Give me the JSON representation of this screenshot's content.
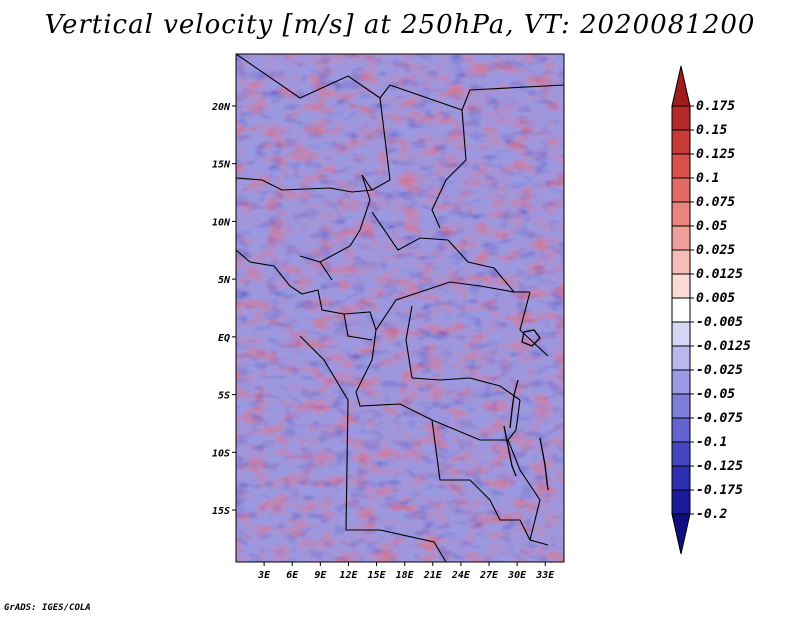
{
  "title": "Vertical velocity [m/s] at 250hPa, VT: 2020081200",
  "credit": "GrADS: IGES/COLA",
  "map": {
    "lat_range": [
      -19.5,
      24.5
    ],
    "lon_range": [
      0,
      35
    ],
    "y_ticks": [
      "20N",
      "15N",
      "10N",
      "5N",
      "EQ",
      "5S",
      "10S",
      "15S"
    ],
    "y_tick_values": [
      20,
      15,
      10,
      5,
      0,
      -5,
      -10,
      -15
    ],
    "x_ticks": [
      "3E",
      "6E",
      "9E",
      "12E",
      "15E",
      "18E",
      "21E",
      "24E",
      "27E",
      "30E",
      "33E"
    ],
    "x_tick_values": [
      3,
      6,
      9,
      12,
      15,
      18,
      21,
      24,
      27,
      30,
      33
    ]
  },
  "colorbar": {
    "labels": [
      "0.175",
      "0.15",
      "0.125",
      "0.1",
      "0.075",
      "0.05",
      "0.025",
      "0.0125",
      "0.005",
      "-0.005",
      "-0.0125",
      "-0.025",
      "-0.05",
      "-0.075",
      "-0.1",
      "-0.125",
      "-0.175",
      "-0.2"
    ],
    "colors": [
      "#a01c1c",
      "#b52828",
      "#c83a38",
      "#d8504c",
      "#e26a64",
      "#ea847e",
      "#f0a09a",
      "#f6bdb8",
      "#fad9d6",
      "#ffffff",
      "#d6d6f4",
      "#b8b8ee",
      "#9a9ae6",
      "#7d7ddc",
      "#6262d0",
      "#4646c2",
      "#2e2eb0",
      "#1a1a9a",
      "#0e0e80"
    ]
  }
}
